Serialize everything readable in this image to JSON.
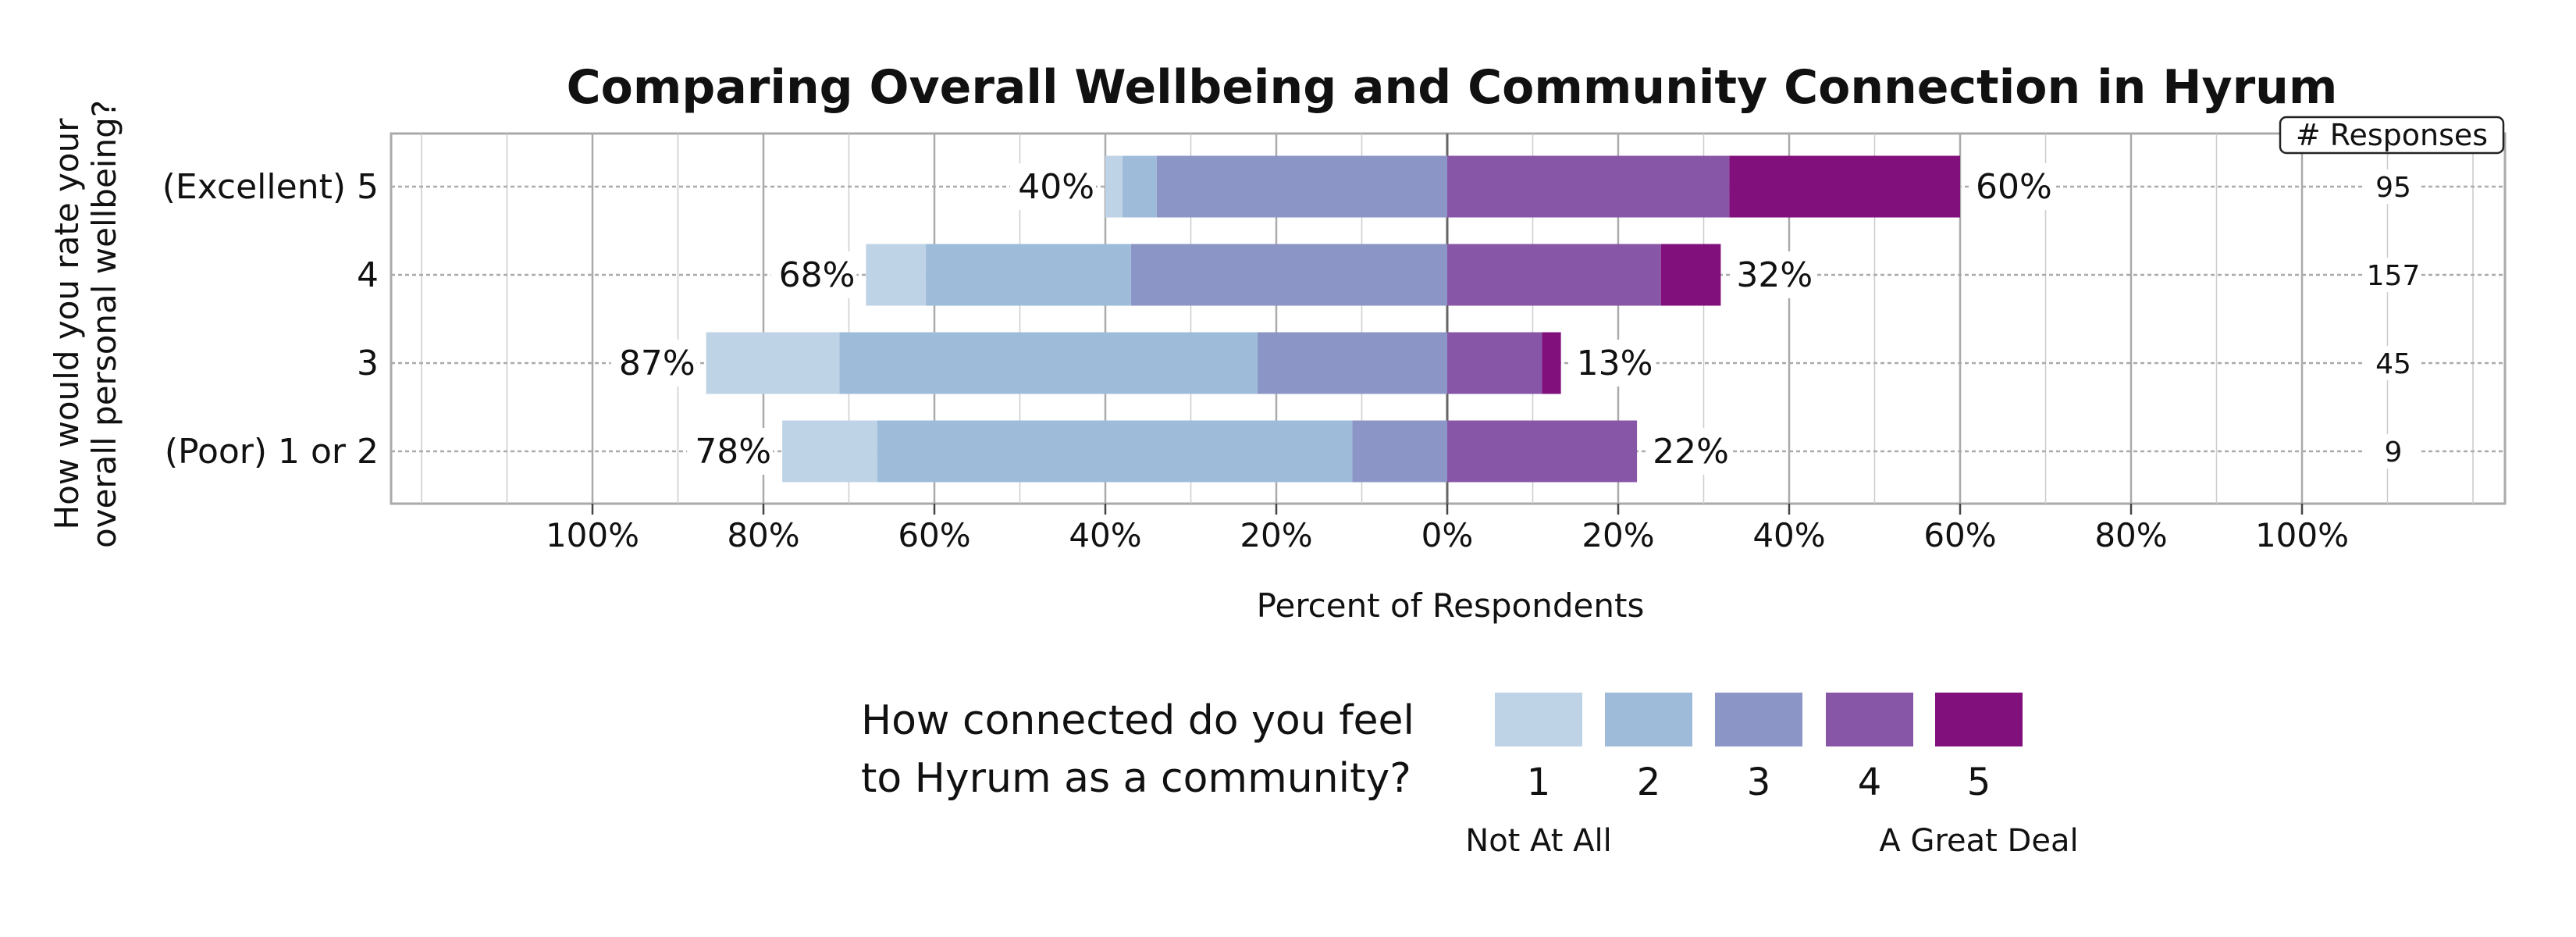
{
  "chart_data": {
    "type": "bar",
    "orientation": "horizontal",
    "stacked": "diverging",
    "title": "Comparing Overall Wellbeing and Community Connection in Hyrum",
    "xlabel": "Percent of Respondents",
    "ylabel": [
      "How would you rate your",
      "overall personal wellbeing?"
    ],
    "xlim": [
      -100,
      100
    ],
    "xticks": [
      "100%",
      "80%",
      "60%",
      "40%",
      "20%",
      "0%",
      "20%",
      "40%",
      "60%",
      "80%",
      "100%"
    ],
    "grid": true,
    "categories": [
      "(Excellent) 5",
      "4",
      "3",
      "(Poor) 1 or 2"
    ],
    "series": [
      {
        "name": "1",
        "color": "#bfd3e6",
        "values": [
          2,
          7,
          15.6,
          11.1
        ]
      },
      {
        "name": "2",
        "color": "#9ebcda",
        "values": [
          4,
          24,
          48.9,
          55.6
        ]
      },
      {
        "name": "3",
        "color": "#8c96c6",
        "values": [
          34,
          37,
          22.2,
          11.1
        ]
      },
      {
        "name": "4",
        "color": "#8856a7",
        "values": [
          33,
          25,
          11.1,
          22.2
        ]
      },
      {
        "name": "5",
        "color": "#810f7c",
        "values": [
          27,
          7,
          2.2,
          0
        ]
      }
    ],
    "negative_series": [
      "1",
      "2",
      "3"
    ],
    "positive_series": [
      "4",
      "5"
    ],
    "left_labels": [
      "40%",
      "68%",
      "87%",
      "78%"
    ],
    "right_labels": [
      "60%",
      "32%",
      "13%",
      "22%"
    ],
    "responses_header": "# Responses",
    "responses": [
      "95",
      "157",
      "45",
      "9"
    ],
    "legend": {
      "title": [
        "How connected do you feel",
        "to Hyrum as a community?"
      ],
      "low_label": "Not At All",
      "high_label": "A Great Deal",
      "placement": "bottom"
    }
  }
}
